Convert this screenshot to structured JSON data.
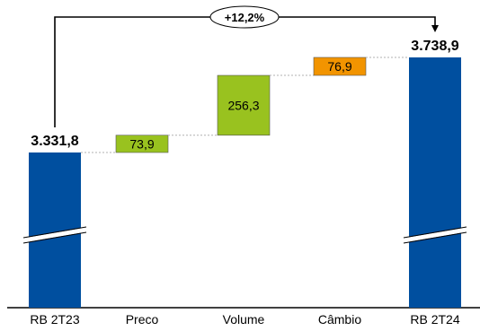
{
  "chart_data": {
    "type": "waterfall",
    "categories": [
      "RB 2T23",
      "Preco",
      "Volume",
      "Câmbio",
      "RB 2T24"
    ],
    "start": {
      "label": "3.331,8",
      "value": 3331.8
    },
    "steps": [
      {
        "label": "73,9",
        "value": 73.9,
        "color": "#99c21f"
      },
      {
        "label": "256,3",
        "value": 256.3,
        "color": "#99c21f"
      },
      {
        "label": "76,9",
        "value": 76.9,
        "color": "#f29400"
      }
    ],
    "end": {
      "label": "3.738,9",
      "value": 3738.9
    },
    "growth_label": "+12,2%",
    "axis_break": true,
    "colors": {
      "total": "#004f9f",
      "positive": "#99c21f",
      "fx": "#f29400",
      "connector": "#b0b0b0",
      "axis": "#000000"
    }
  }
}
